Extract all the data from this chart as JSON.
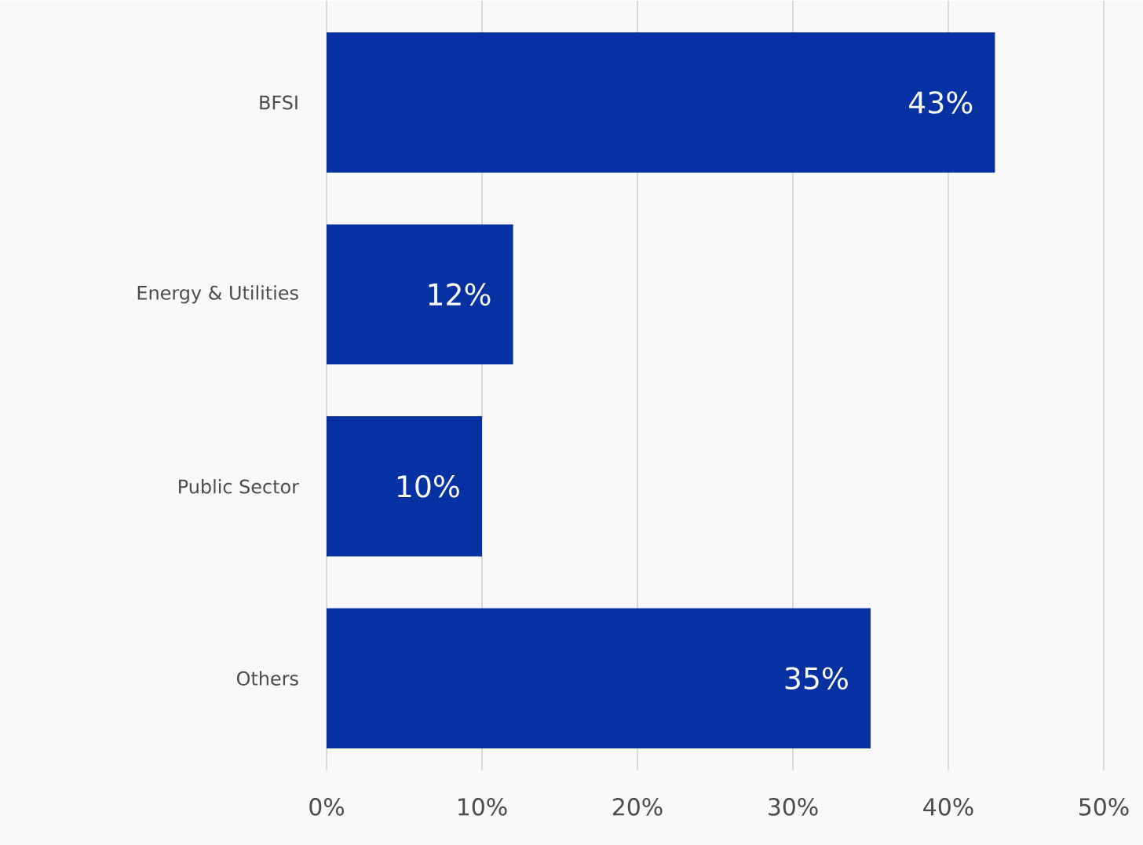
{
  "chart_data": {
    "type": "bar",
    "orientation": "horizontal",
    "categories": [
      "BFSI",
      "Energy & Utilities",
      "Public Sector",
      "Others"
    ],
    "values": [
      43,
      12,
      10,
      35
    ],
    "value_labels": [
      "43%",
      "12%",
      "10%",
      "35%"
    ],
    "color": "#0531a3",
    "xlim": [
      0,
      50
    ],
    "xticks": [
      {
        "value": 0,
        "label": "0%"
      },
      {
        "value": 10,
        "label": "10%"
      },
      {
        "value": 20,
        "label": "20%"
      },
      {
        "value": 30,
        "label": "30%"
      },
      {
        "value": 40,
        "label": "40%"
      },
      {
        "value": 50,
        "label": "50%"
      }
    ],
    "grid": "x"
  }
}
